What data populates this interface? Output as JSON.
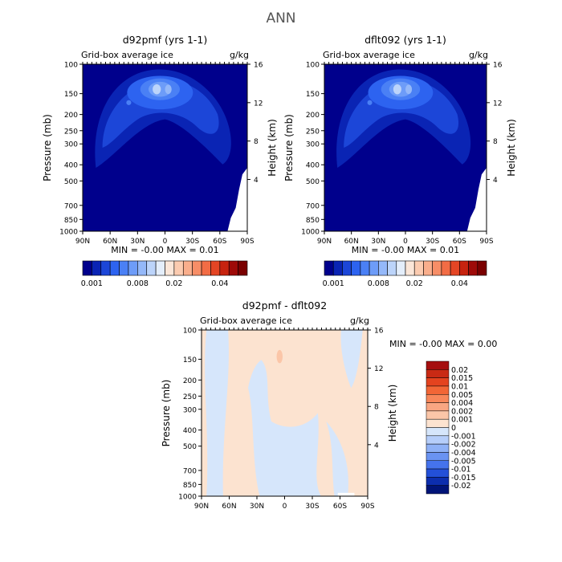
{
  "figure_title": "ANN",
  "chart_data": [
    {
      "type": "heatmap",
      "panel": "top-left",
      "title": "d92pmf (yrs 1-1)",
      "subtitle_left": "Grid-box average ice",
      "units": "g/kg",
      "ylabel": "Pressure (mb)",
      "ylabel_right": "Height (km)",
      "x_ticks": [
        "90N",
        "60N",
        "30N",
        "0",
        "30S",
        "60S",
        "90S"
      ],
      "y_ticks": [
        100,
        150,
        200,
        250,
        300,
        400,
        500,
        700,
        850,
        1000
      ],
      "right_ticks": [
        16,
        12,
        8,
        4
      ],
      "ylim": [
        1000,
        100
      ],
      "min_max_text": "MIN =   -0.00    MAX =    0.01",
      "colorbar": {
        "orientation": "horizontal",
        "colors": [
          "#00008c",
          "#0a24b4",
          "#1c46d8",
          "#2d63f0",
          "#4a80f5",
          "#6d9cf8",
          "#94b8f9",
          "#bcd4fa",
          "#e4eefb",
          "#fbe6d8",
          "#fbcbb0",
          "#f9ae8c",
          "#f78e67",
          "#f26c45",
          "#e44524",
          "#c7230f",
          "#9e0a08",
          "#7a0000"
        ],
        "labels": [
          "0.001",
          "0.008",
          "0.02",
          "0.04"
        ]
      }
    },
    {
      "type": "heatmap",
      "panel": "top-right",
      "title": "dflt092 (yrs 1-1)",
      "subtitle_left": "Grid-box average ice",
      "units": "g/kg",
      "ylabel": "Pressure (mb)",
      "ylabel_right": "Height (km)",
      "x_ticks": [
        "90N",
        "60N",
        "30N",
        "0",
        "30S",
        "60S",
        "90S"
      ],
      "y_ticks": [
        100,
        150,
        200,
        250,
        300,
        400,
        500,
        700,
        850,
        1000
      ],
      "right_ticks": [
        16,
        12,
        8,
        4
      ],
      "ylim": [
        1000,
        100
      ],
      "min_max_text": "MIN =   -0.00    MAX =    0.01",
      "colorbar": {
        "orientation": "horizontal",
        "colors": [
          "#00008c",
          "#0a24b4",
          "#1c46d8",
          "#2d63f0",
          "#4a80f5",
          "#6d9cf8",
          "#94b8f9",
          "#bcd4fa",
          "#e4eefb",
          "#fbe6d8",
          "#fbcbb0",
          "#f9ae8c",
          "#f78e67",
          "#f26c45",
          "#e44524",
          "#c7230f",
          "#9e0a08",
          "#7a0000"
        ],
        "labels": [
          "0.001",
          "0.008",
          "0.02",
          "0.04"
        ]
      }
    },
    {
      "type": "heatmap",
      "panel": "bottom",
      "title": "d92pmf - dflt092",
      "subtitle_left": "Grid-box average ice",
      "units": "g/kg",
      "ylabel": "Pressure (mb)",
      "ylabel_right": "Height (km)",
      "x_ticks": [
        "90N",
        "60N",
        "30N",
        "0",
        "30S",
        "60S",
        "90S"
      ],
      "y_ticks": [
        100,
        150,
        200,
        250,
        300,
        400,
        500,
        700,
        850,
        1000
      ],
      "right_ticks": [
        16,
        12,
        8,
        4
      ],
      "ylim": [
        1000,
        100
      ],
      "min_max_text": "MIN =   -0.00    MAX =    0.00",
      "colorbar": {
        "orientation": "vertical",
        "levels": [
          "0.02",
          "0.015",
          "0.01",
          "0.005",
          "0.004",
          "0.002",
          "0.001",
          "0",
          "-0.001",
          "-0.002",
          "-0.004",
          "-0.005",
          "-0.01",
          "-0.015",
          "-0.02"
        ],
        "colors": [
          "#a50f0f",
          "#c92a14",
          "#e4431f",
          "#f26636",
          "#f8875a",
          "#f9a682",
          "#fbc6a8",
          "#fce3d0",
          "#d6e6fb",
          "#b6cefa",
          "#8fb1f6",
          "#6a93f2",
          "#4573ec",
          "#2350d8",
          "#0c2eae",
          "#001478"
        ]
      }
    }
  ]
}
